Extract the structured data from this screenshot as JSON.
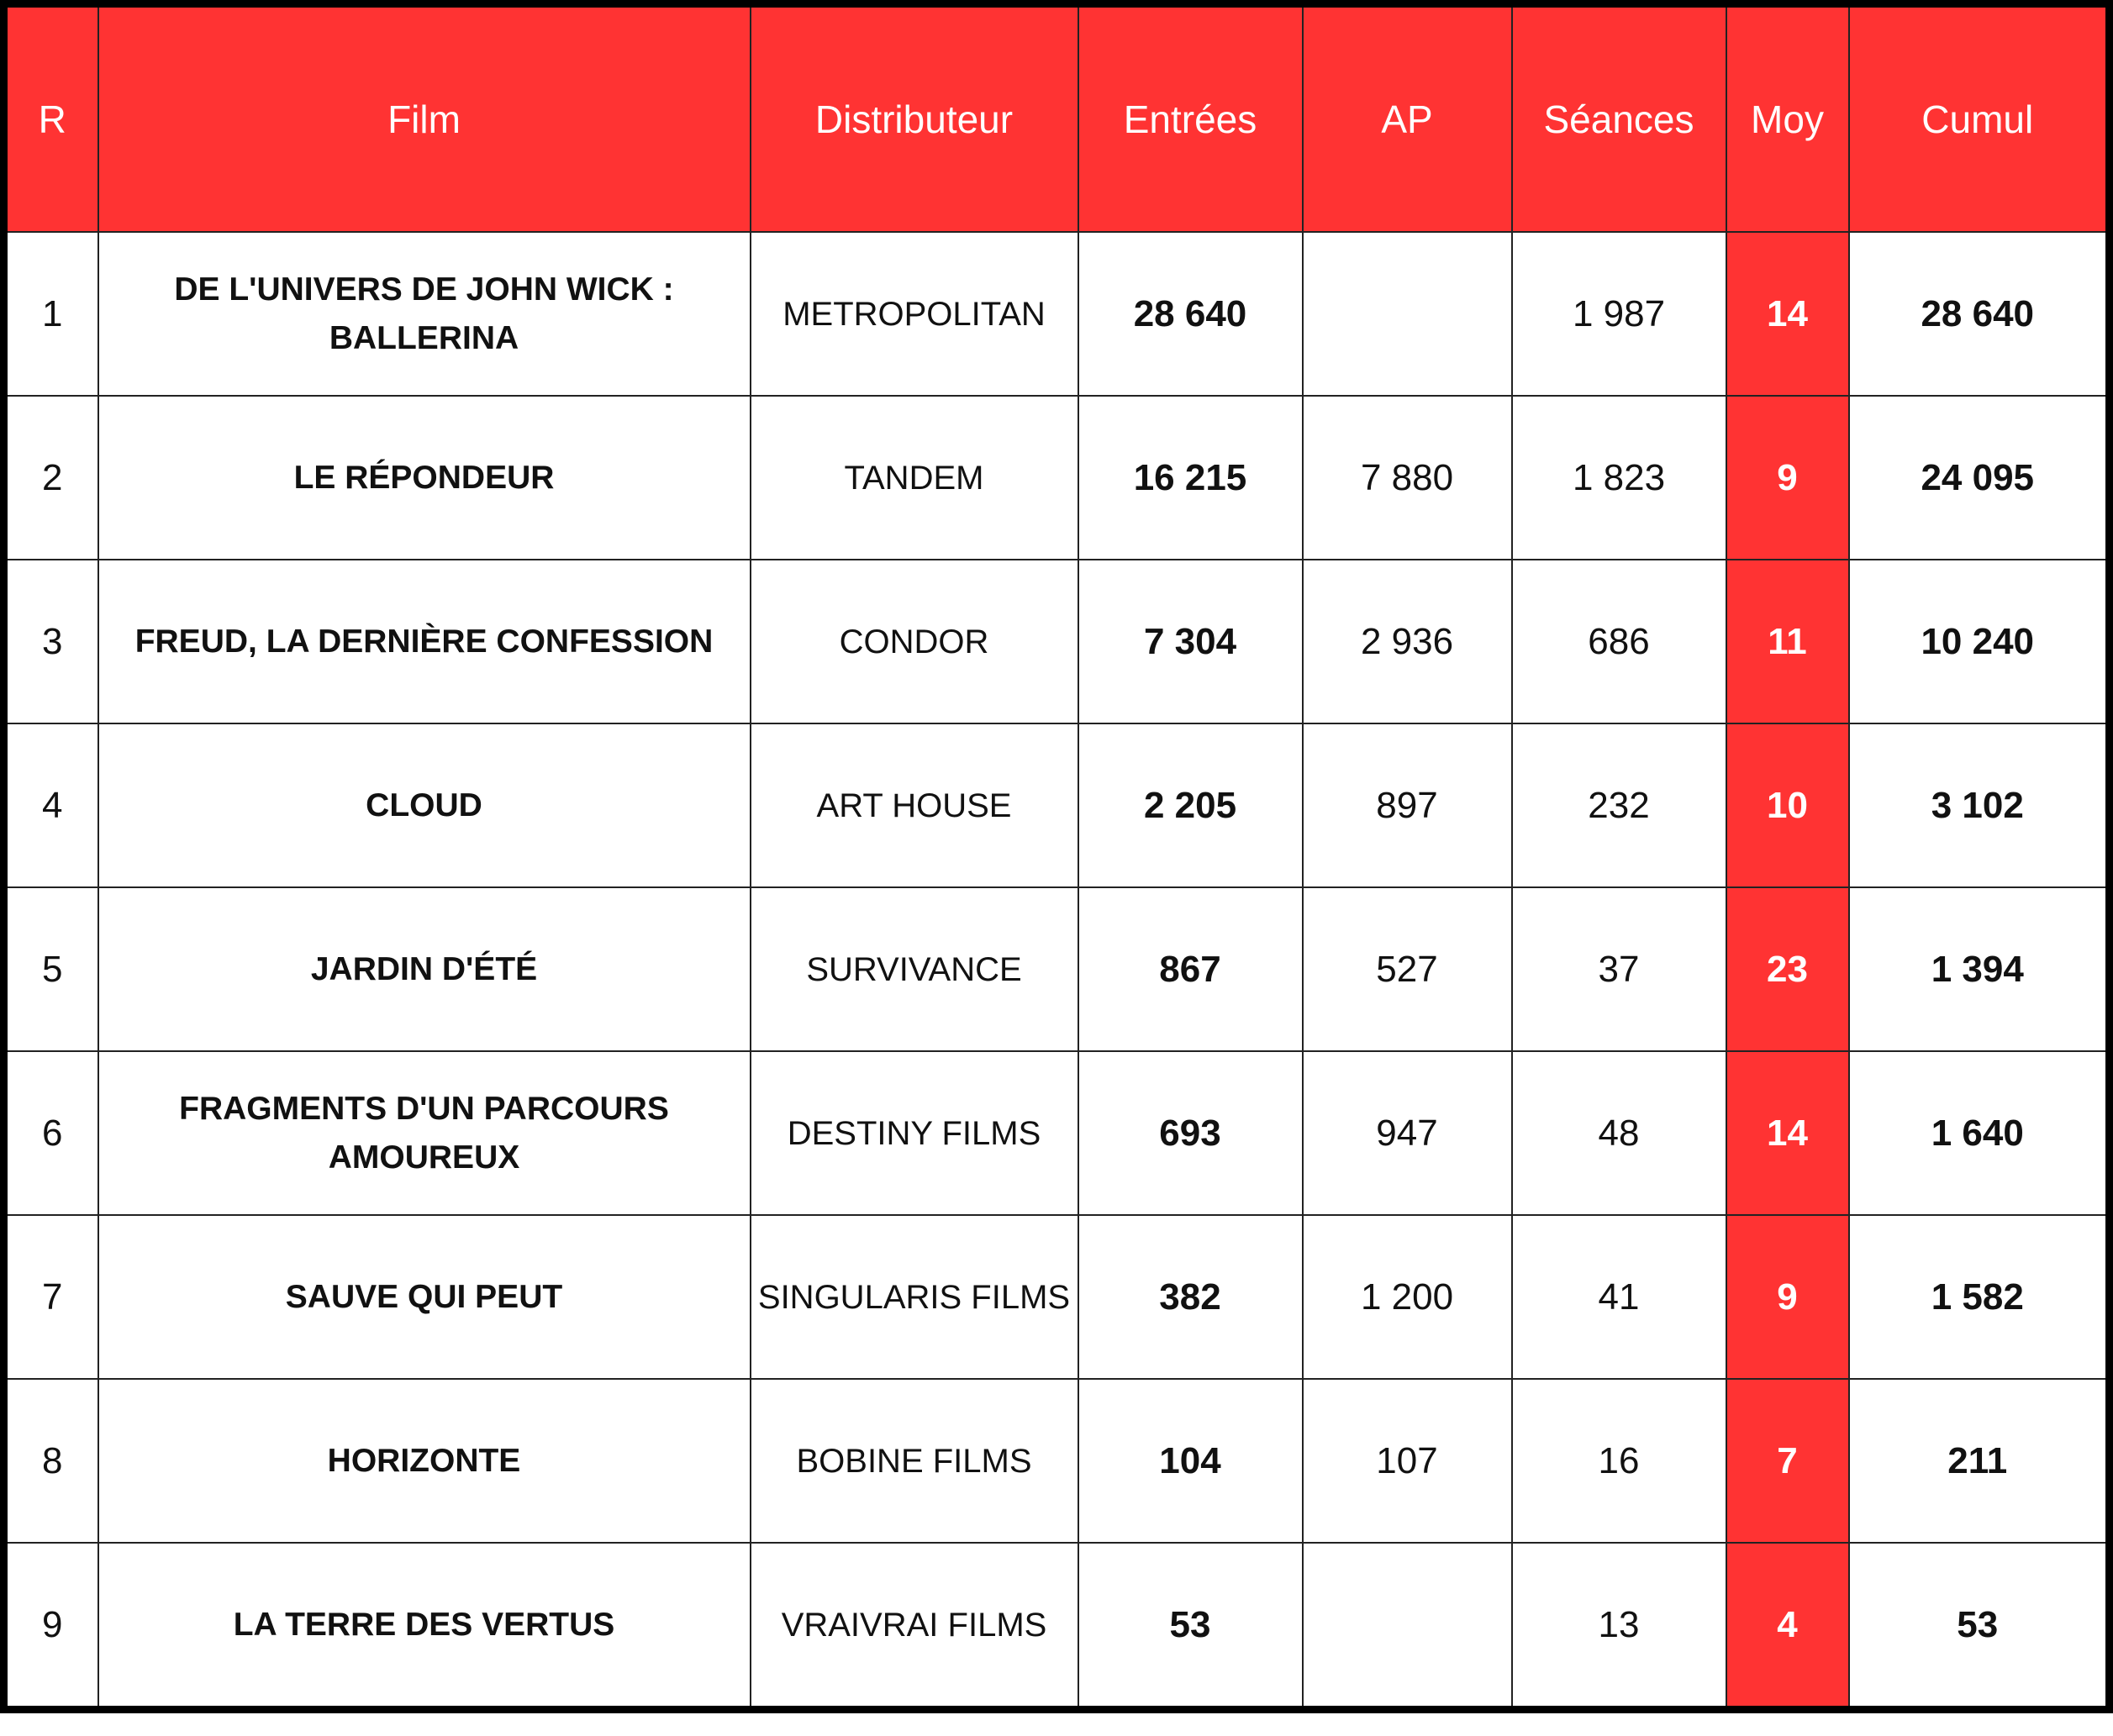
{
  "headers": [
    "R",
    "Film",
    "Distributeur",
    "Entrées",
    "AP",
    "Séances",
    "Moy",
    "Cumul"
  ],
  "rows": [
    {
      "r": "1",
      "film": "DE L'UNIVERS DE JOHN WICK : BALLERINA",
      "dist": "METROPOLITAN",
      "entrees": "28 640",
      "ap": "",
      "seances": "1 987",
      "moy": "14",
      "cumul": "28 640"
    },
    {
      "r": "2",
      "film": "LE RÉPONDEUR",
      "dist": "TANDEM",
      "entrees": "16 215",
      "ap": "7 880",
      "seances": "1 823",
      "moy": "9",
      "cumul": "24 095"
    },
    {
      "r": "3",
      "film": "FREUD, LA DERNIÈRE CONFESSION",
      "dist": "CONDOR",
      "entrees": "7 304",
      "ap": "2 936",
      "seances": "686",
      "moy": "11",
      "cumul": "10 240"
    },
    {
      "r": "4",
      "film": "CLOUD",
      "dist": "ART HOUSE",
      "entrees": "2 205",
      "ap": "897",
      "seances": "232",
      "moy": "10",
      "cumul": "3 102"
    },
    {
      "r": "5",
      "film": "JARDIN D'ÉTÉ",
      "dist": "SURVIVANCE",
      "entrees": "867",
      "ap": "527",
      "seances": "37",
      "moy": "23",
      "cumul": "1 394"
    },
    {
      "r": "6",
      "film": "FRAGMENTS D'UN PARCOURS AMOUREUX",
      "dist": "DESTINY FILMS",
      "entrees": "693",
      "ap": "947",
      "seances": "48",
      "moy": "14",
      "cumul": "1 640"
    },
    {
      "r": "7",
      "film": "SAUVE QUI PEUT",
      "dist": "SINGULARIS FILMS",
      "entrees": "382",
      "ap": "1 200",
      "seances": "41",
      "moy": "9",
      "cumul": "1 582"
    },
    {
      "r": "8",
      "film": "HORIZONTE",
      "dist": "BOBINE FILMS",
      "entrees": "104",
      "ap": "107",
      "seances": "16",
      "moy": "7",
      "cumul": "211"
    },
    {
      "r": "9",
      "film": "LA TERRE DES VERTUS",
      "dist": "VRAIVRAI FILMS",
      "entrees": "53",
      "ap": "",
      "seances": "13",
      "moy": "4",
      "cumul": "53"
    }
  ],
  "colors": {
    "header": "#ff3333",
    "moy": "#ff3333"
  }
}
